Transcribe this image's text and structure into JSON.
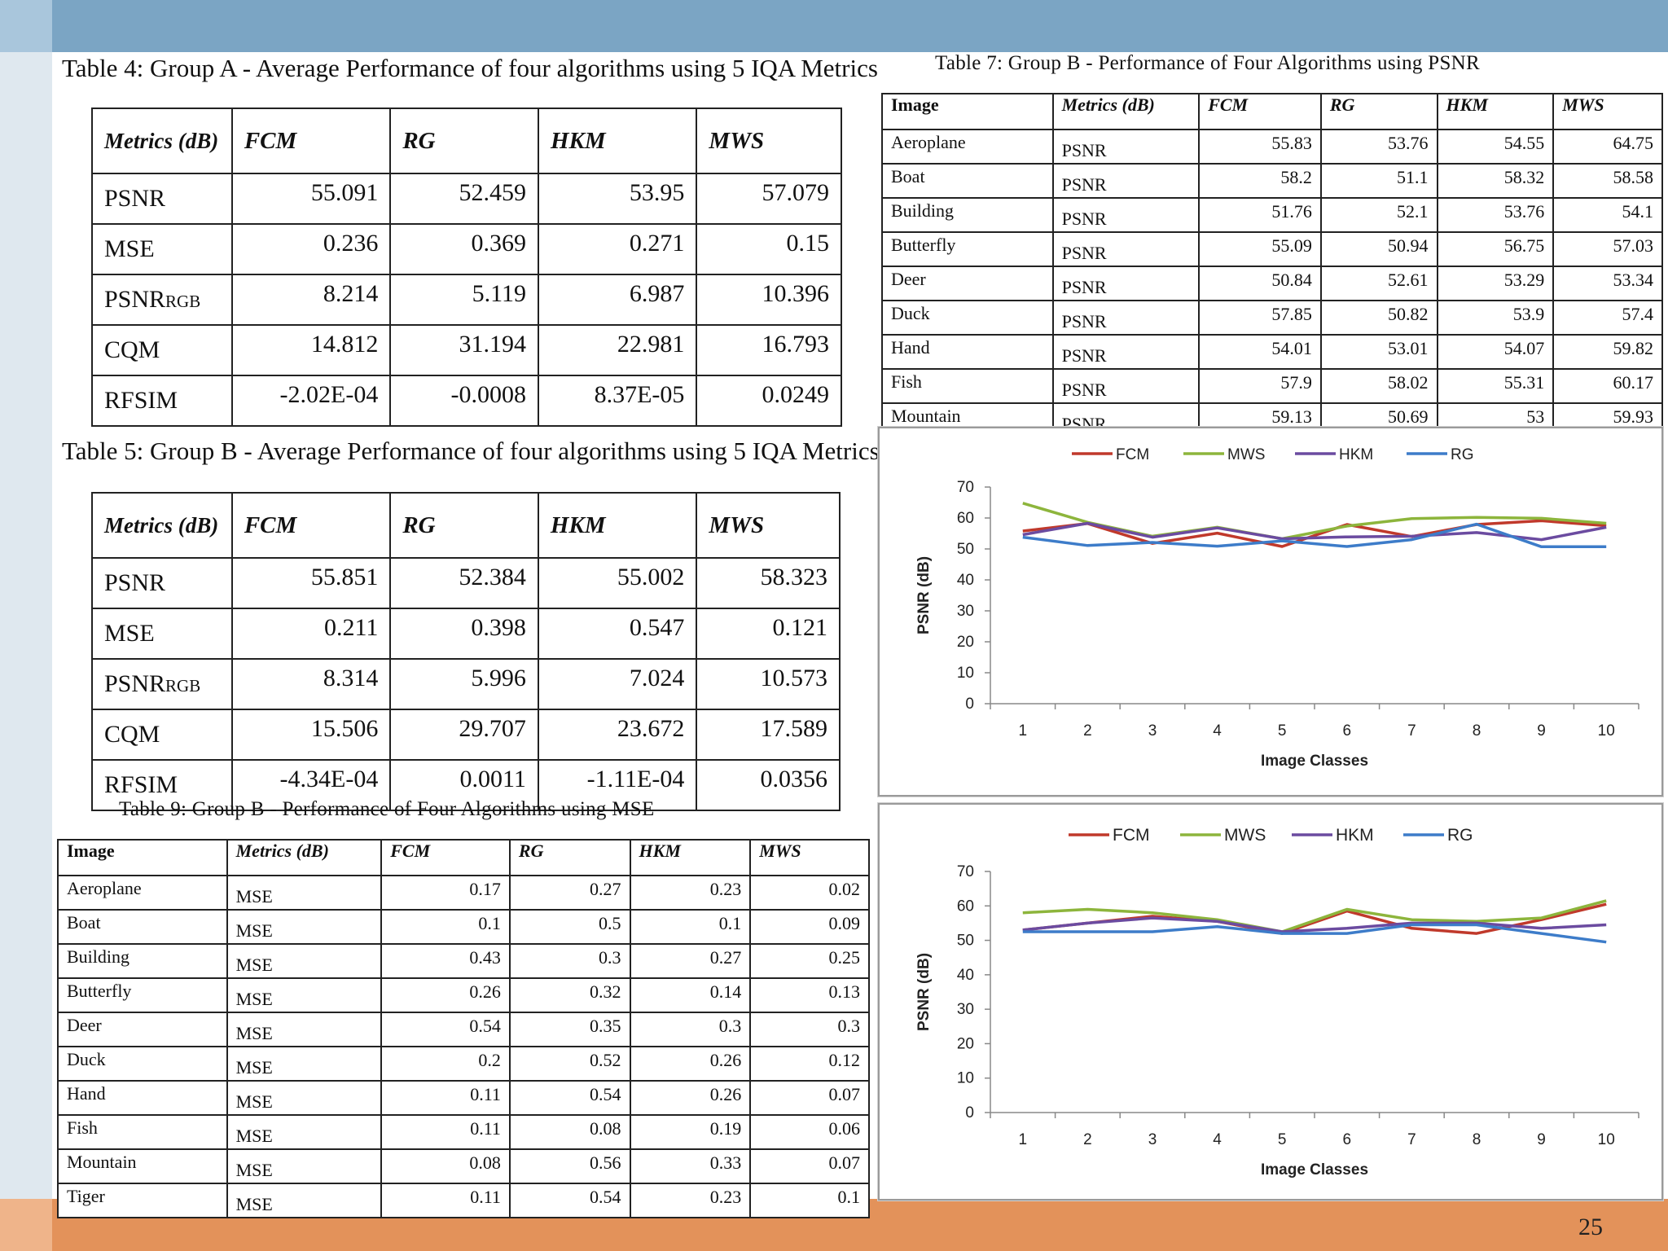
{
  "slide": {
    "page_number": "25"
  },
  "table4": {
    "caption": "Table 4: Group A - Average Performance of four algorithms using 5 IQA Metrics",
    "headers": [
      "Metrics (dB)",
      "FCM",
      "RG",
      "HKM",
      "MWS"
    ],
    "rows": [
      {
        "metric": "PSNR",
        "values": [
          "55.091",
          "52.459",
          "53.95",
          "57.079"
        ]
      },
      {
        "metric": "MSE",
        "values": [
          "0.236",
          "0.369",
          "0.271",
          "0.15"
        ]
      },
      {
        "metric": "PSNR",
        "sub": "RGB",
        "values": [
          "8.214",
          "5.119",
          "6.987",
          "10.396"
        ]
      },
      {
        "metric": "CQM",
        "values": [
          "14.812",
          "31.194",
          "22.981",
          "16.793"
        ]
      },
      {
        "metric": "RFSIM",
        "values": [
          "-2.02E-04",
          "-0.0008",
          "8.37E-05",
          "0.0249"
        ]
      }
    ]
  },
  "table5": {
    "caption": "Table 5: Group B - Average Performance of four algorithms using 5 IQA Metrics",
    "headers": [
      "Metrics (dB)",
      "FCM",
      "RG",
      "HKM",
      "MWS"
    ],
    "rows": [
      {
        "metric": "PSNR",
        "values": [
          "55.851",
          "52.384",
          "55.002",
          "58.323"
        ]
      },
      {
        "metric": "MSE",
        "values": [
          "0.211",
          "0.398",
          "0.547",
          "0.121"
        ]
      },
      {
        "metric": "PSNR",
        "sub": "RGB",
        "values": [
          "8.314",
          "5.996",
          "7.024",
          "10.573"
        ]
      },
      {
        "metric": "CQM",
        "values": [
          "15.506",
          "29.707",
          "23.672",
          "17.589"
        ]
      },
      {
        "metric": "RFSIM",
        "values": [
          "-4.34E-04",
          "0.0011",
          "-1.11E-04",
          "0.0356"
        ]
      }
    ]
  },
  "table7": {
    "caption": "Table 7: Group B - Performance of Four Algorithms using PSNR",
    "headers": [
      "Image",
      "Metrics (dB)",
      "FCM",
      "RG",
      "HKM",
      "MWS"
    ],
    "rows": [
      {
        "image": "Aeroplane",
        "metric": "PSNR",
        "values": [
          "55.83",
          "53.76",
          "54.55",
          "64.75"
        ]
      },
      {
        "image": "Boat",
        "metric": "PSNR",
        "values": [
          "58.2",
          "51.1",
          "58.32",
          "58.58"
        ]
      },
      {
        "image": "Building",
        "metric": "PSNR",
        "values": [
          "51.76",
          "52.1",
          "53.76",
          "54.1"
        ]
      },
      {
        "image": "Butterfly",
        "metric": "PSNR",
        "values": [
          "55.09",
          "50.94",
          "56.75",
          "57.03"
        ]
      },
      {
        "image": "Deer",
        "metric": "PSNR",
        "values": [
          "50.84",
          "52.61",
          "53.29",
          "53.34"
        ]
      },
      {
        "image": "Duck",
        "metric": "PSNR",
        "values": [
          "57.85",
          "50.82",
          "53.9",
          "57.4"
        ]
      },
      {
        "image": "Hand",
        "metric": "PSNR",
        "values": [
          "54.01",
          "53.01",
          "54.07",
          "59.82"
        ]
      },
      {
        "image": "Fish",
        "metric": "PSNR",
        "values": [
          "57.9",
          "58.02",
          "55.31",
          "60.17"
        ]
      },
      {
        "image": "Mountain",
        "metric": "PSNR",
        "values": [
          "59.13",
          "50.69",
          "53",
          "59.93"
        ]
      }
    ]
  },
  "table9": {
    "caption": "Table 9: Group B - Performance of Four Algorithms using MSE",
    "headers": [
      "Image",
      "Metrics (dB)",
      "FCM",
      "RG",
      "HKM",
      "MWS"
    ],
    "rows": [
      {
        "image": "Aeroplane",
        "metric": "MSE",
        "values": [
          "0.17",
          "0.27",
          "0.23",
          "0.02"
        ]
      },
      {
        "image": "Boat",
        "metric": "MSE",
        "values": [
          "0.1",
          "0.5",
          "0.1",
          "0.09"
        ]
      },
      {
        "image": "Building",
        "metric": "MSE",
        "values": [
          "0.43",
          "0.3",
          "0.27",
          "0.25"
        ]
      },
      {
        "image": "Butterfly",
        "metric": "MSE",
        "values": [
          "0.26",
          "0.32",
          "0.14",
          "0.13"
        ]
      },
      {
        "image": "Deer",
        "metric": "MSE",
        "values": [
          "0.54",
          "0.35",
          "0.3",
          "0.3"
        ]
      },
      {
        "image": "Duck",
        "metric": "MSE",
        "values": [
          "0.2",
          "0.52",
          "0.26",
          "0.12"
        ]
      },
      {
        "image": "Hand",
        "metric": "MSE",
        "values": [
          "0.11",
          "0.54",
          "0.26",
          "0.07"
        ]
      },
      {
        "image": "Fish",
        "metric": "MSE",
        "values": [
          "0.11",
          "0.08",
          "0.19",
          "0.06"
        ]
      },
      {
        "image": "Mountain",
        "metric": "MSE",
        "values": [
          "0.08",
          "0.56",
          "0.33",
          "0.07"
        ]
      },
      {
        "image": "Tiger",
        "metric": "MSE",
        "values": [
          "0.11",
          "0.54",
          "0.23",
          "0.1"
        ]
      }
    ]
  },
  "chart_data": [
    {
      "type": "line",
      "title": "",
      "xlabel": "Image Classes",
      "ylabel": "PSNR (dB)",
      "x": [
        1,
        2,
        3,
        4,
        5,
        6,
        7,
        8,
        9,
        10
      ],
      "ylim": [
        0,
        70
      ],
      "yticks": [
        0,
        10,
        20,
        30,
        40,
        50,
        60,
        70
      ],
      "legend_position": "top",
      "series": [
        {
          "name": "FCM",
          "color": "#c0392b",
          "values": [
            55.8,
            58.2,
            51.8,
            55.1,
            50.8,
            57.9,
            54.0,
            57.9,
            59.1,
            57.5
          ]
        },
        {
          "name": "MWS",
          "color": "#8db53c",
          "values": [
            64.8,
            58.6,
            54.1,
            57.0,
            53.3,
            57.4,
            59.8,
            60.2,
            59.9,
            58.3
          ]
        },
        {
          "name": "HKM",
          "color": "#6b4ba0",
          "values": [
            54.6,
            58.3,
            53.8,
            56.8,
            53.3,
            53.9,
            54.1,
            55.3,
            53.0,
            57.0
          ]
        },
        {
          "name": "RG",
          "color": "#3d7cc9",
          "values": [
            53.8,
            51.1,
            52.1,
            50.9,
            52.6,
            50.8,
            53.0,
            58.0,
            50.7,
            50.7
          ]
        }
      ]
    },
    {
      "type": "line",
      "title": "",
      "xlabel": "Image Classes",
      "ylabel": "PSNR (dB)",
      "x": [
        1,
        2,
        3,
        4,
        5,
        6,
        7,
        8,
        9,
        10
      ],
      "ylim": [
        0,
        70
      ],
      "yticks": [
        0,
        10,
        20,
        30,
        40,
        50,
        60,
        70
      ],
      "legend_position": "top",
      "series": [
        {
          "name": "FCM",
          "color": "#c0392b",
          "values": [
            53.0,
            55.0,
            57.0,
            55.5,
            52.0,
            58.5,
            53.5,
            52.0,
            56.0,
            60.5
          ]
        },
        {
          "name": "MWS",
          "color": "#8db53c",
          "values": [
            58.0,
            59.0,
            58.0,
            56.0,
            52.5,
            59.0,
            56.0,
            55.5,
            56.5,
            61.5
          ]
        },
        {
          "name": "HKM",
          "color": "#6b4ba0",
          "values": [
            53.0,
            55.0,
            56.5,
            55.5,
            52.5,
            53.5,
            55.0,
            55.0,
            53.5,
            54.5
          ]
        },
        {
          "name": "RG",
          "color": "#3d7cc9",
          "values": [
            52.5,
            52.5,
            52.5,
            54.0,
            52.0,
            52.0,
            54.5,
            54.5,
            52.0,
            49.5
          ]
        }
      ]
    }
  ]
}
